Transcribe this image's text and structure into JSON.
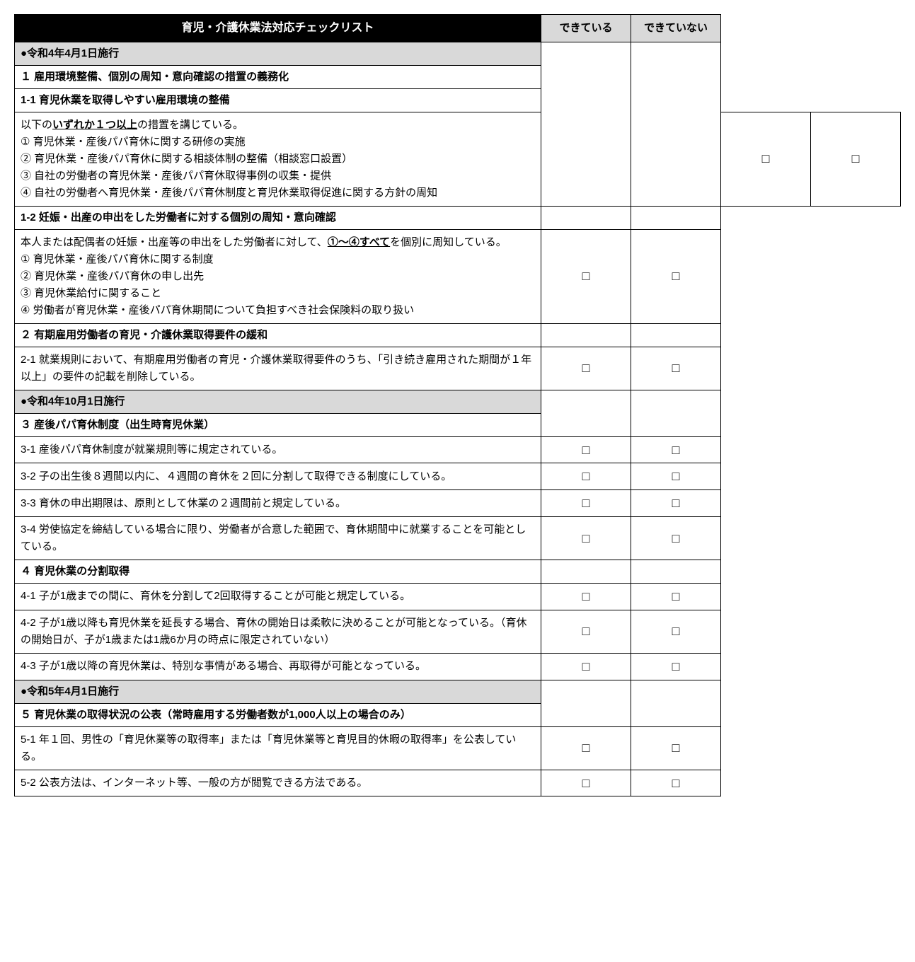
{
  "header": {
    "title": "育児・介護休業法対応チェックリスト",
    "colYes": "できている",
    "colNo": "できていない"
  },
  "checkbox": "□",
  "rows": [
    {
      "type": "date",
      "text": "●令和4年4月1日施行",
      "noCheck": true,
      "span": 2
    },
    {
      "type": "head",
      "text": "１ 雇用環境整備、個別の周知・意向確認の措置の義務化",
      "noCheck": true,
      "contSpan": true
    },
    {
      "type": "sub",
      "text": "1-1 育児休業を取得しやすい雇用環境の整備",
      "noCheck": true,
      "contSpan": true
    },
    {
      "type": "content",
      "html": "以下の<span class='underline'>いずれか１つ以上</span>の措置を講じている。<br>① 育児休業・産後パパ育休に関する研修の実施<br>② 育児休業・産後パパ育休に関する相談体制の整備（相談窓口設置）<br>③ 自社の労働者の育児休業・産後パパ育休取得事例の収集・提供<br>④ 自社の労働者へ育児休業・産後パパ育休制度と育児休業取得促進に関する方針の周知",
      "check": true
    },
    {
      "type": "sub",
      "text": "1-2 妊娠・出産の申出をした労働者に対する個別の周知・意向確認",
      "noCheck": true,
      "span": 1
    },
    {
      "type": "content",
      "html": "本人または配偶者の妊娠・出産等の申出をした労働者に対して、<span class='underline'>①～④すべて</span>を個別に周知している。<br>① 育児休業・産後パパ育休に関する制度<br>② 育児休業・産後パパ育休の申し出先<br>③ 育児休業給付に関すること<br>④ 労働者が育児休業・産後パパ育休期間について負担すべき社会保険料の取り扱い",
      "check": true
    },
    {
      "type": "head",
      "text": "２ 有期雇用労働者の育児・介護休業取得要件の緩和",
      "noCheck": true,
      "span": 1
    },
    {
      "type": "content",
      "html": "2-1 就業規則において、有期雇用労働者の育児・介護休業取得要件のうち、「引き続き雇用された期間が１年以上」の要件の記載を削除している。",
      "check": true
    },
    {
      "type": "date",
      "text": "●令和4年10月1日施行",
      "noCheck": true,
      "span": 1
    },
    {
      "type": "head",
      "text": "３ 産後パパ育休制度（出生時育児休業）",
      "noCheck": true,
      "contSpan": true
    },
    {
      "type": "content",
      "html": "3-1 産後パパ育休制度が就業規則等に規定されている。",
      "check": true
    },
    {
      "type": "content",
      "html": "3-2 子の出生後８週間以内に、４週間の育休を２回に分割して取得できる制度にしている。",
      "check": true
    },
    {
      "type": "content",
      "html": "3-3 育休の申出期限は、原則として休業の２週間前と規定している。",
      "check": true
    },
    {
      "type": "content",
      "html": "3-4 労使協定を締結している場合に限り、労働者が合意した範囲で、育休期間中に就業することを可能としている。",
      "check": true
    },
    {
      "type": "head",
      "text": "４ 育児休業の分割取得",
      "noCheck": true,
      "span": 1
    },
    {
      "type": "content",
      "html": "4-1 子が1歳までの間に、育休を分割して2回取得することが可能と規定している。",
      "check": true
    },
    {
      "type": "content",
      "html": "4-2 子が1歳以降も育児休業を延長する場合、育休の開始日は柔軟に決めることが可能となっている。（育休の開始日が、子が1歳または1歳6か月の時点に限定されていない）",
      "check": true
    },
    {
      "type": "content",
      "html": "4-3 子が1歳以降の育児休業は、特別な事情がある場合、再取得が可能となっている。",
      "check": true
    },
    {
      "type": "date",
      "text": "●令和5年4月1日施行",
      "noCheck": true,
      "span": 1
    },
    {
      "type": "head",
      "text": "５ 育児休業の取得状況の公表（常時雇用する労働者数が1,000人以上の場合のみ）",
      "noCheck": true,
      "contSpan": true
    },
    {
      "type": "content",
      "html": "5-1 年１回、男性の「育児休業等の取得率」または「育児休業等と育児目的休暇の取得率」を公表している。",
      "check": true
    },
    {
      "type": "content",
      "html": "5-2 公表方法は、インターネット等、一般の方が閲覧できる方法である。",
      "check": true
    }
  ]
}
